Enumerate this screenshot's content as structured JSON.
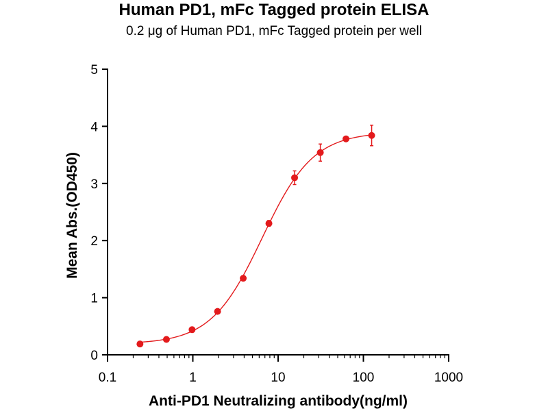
{
  "colors": {
    "series": "#e31a1c",
    "axis": "#000000"
  },
  "chart_data": {
    "type": "scatter",
    "title": "Human PD1,  mFc Tagged protein ELISA",
    "subtitle": "0.2 μg of Human PD1, mFc Tagged protein per well",
    "xlabel": "Anti-PD1 Neutralizing antibody(ng/ml)",
    "ylabel": "Mean Abs.(OD450)",
    "xscale": "log",
    "xlim": [
      0.1,
      1000
    ],
    "ylim": [
      0,
      5
    ],
    "xticks": [
      "0.1",
      "1",
      "10",
      "100",
      "1000"
    ],
    "yticks": [
      "0",
      "1",
      "2",
      "3",
      "4",
      "5"
    ],
    "grid": false,
    "fit_curve": "sigmoidal",
    "series": [
      {
        "x": [
          0.24,
          0.49,
          0.98,
          1.95,
          3.9,
          7.8,
          15.6,
          31.25,
          62.5,
          125
        ],
        "y": [
          0.19,
          0.27,
          0.44,
          0.76,
          1.34,
          2.3,
          3.1,
          3.54,
          3.78,
          3.84
        ],
        "yerr": [
          0.02,
          0.02,
          0.03,
          0.03,
          0.04,
          0.05,
          0.12,
          0.15,
          0.04,
          0.18
        ]
      }
    ]
  }
}
